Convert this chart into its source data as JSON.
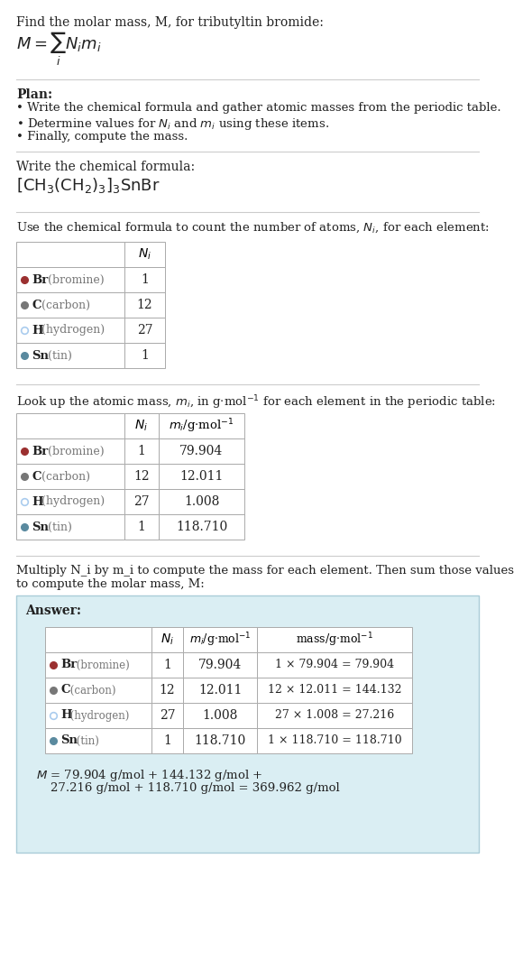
{
  "title_line": "Find the molar mass, M, for tributyltin bromide:",
  "bg_color": "#ffffff",
  "text_color": "#222222",
  "gray_text": "#777777",
  "answer_bg": "#daeef3",
  "answer_border": "#aaccd8",
  "line_color": "#cccccc",
  "plan_header": "Plan:",
  "plan_items": [
    "• Write the chemical formula and gather atomic masses from the periodic table.",
    "• Determine values for N_i and m_i using these items.",
    "• Finally, compute the mass."
  ],
  "formula_section_label": "Write the chemical formula:",
  "lookup_section_label": "Look up the atomic mass, m_i, in g·mol^-1 for each element in the periodic table:",
  "count_section_label": "Use the chemical formula to count the number of atoms, N_i, for each element:",
  "multiply_section_label1": "Multiply N_i by m_i to compute the mass for each element. Then sum those values",
  "multiply_section_label2": "to compute the molar mass, M:",
  "answer_label": "Answer:",
  "elements": [
    {
      "symbol": "Br",
      "name": "bromine",
      "color": "#9b3030",
      "filled": true,
      "Ni": "1",
      "mi": "79.904",
      "mass": "1 × 79.904 = 79.904"
    },
    {
      "symbol": "C",
      "name": "carbon",
      "color": "#777777",
      "filled": true,
      "Ni": "12",
      "mi": "12.011",
      "mass": "12 × 12.011 = 144.132"
    },
    {
      "symbol": "H",
      "name": "hydrogen",
      "color": "#aaccee",
      "filled": false,
      "Ni": "27",
      "mi": "1.008",
      "mass": "27 × 1.008 = 27.216"
    },
    {
      "symbol": "Sn",
      "name": "tin",
      "color": "#5a8a9f",
      "filled": true,
      "Ni": "1",
      "mi": "118.710",
      "mass": "1 × 118.710 = 118.710"
    }
  ],
  "final_line1": "M = 79.904 g/mol + 144.132 g/mol +",
  "final_line2": "    27.216 g/mol + 118.710 g/mol = 369.962 g/mol"
}
